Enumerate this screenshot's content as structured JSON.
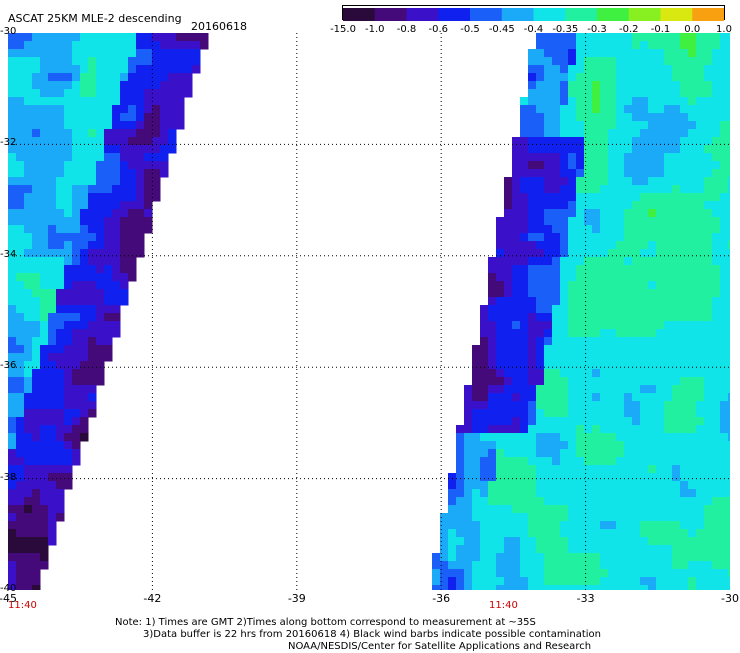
{
  "header": {
    "title": "ASCAT 25KM MLE-2 descending",
    "date": "20160618"
  },
  "colorbar": {
    "labels": [
      "-15.0",
      "-1.0",
      "-0.8",
      "-0.6",
      "-0.5",
      "-0.45",
      "-0.4",
      "-0.35",
      "-0.3",
      "-0.2",
      "-0.1",
      "0.0",
      "1.0"
    ],
    "colors": [
      "#2a0a3a",
      "#440a7a",
      "#3a10c8",
      "#1020ee",
      "#1a60f8",
      "#1aaaf8",
      "#10e4e8",
      "#20f0a0",
      "#40f040",
      "#88f020",
      "#d8e810",
      "#f8a010",
      "#f83010"
    ]
  },
  "axes": {
    "x_ticks": [
      "-45",
      "-42",
      "-39",
      "-36",
      "-33",
      "-30"
    ],
    "y_ticks": [
      "-30",
      "-32",
      "-34",
      "-36",
      "-38",
      "-40"
    ],
    "lon_range": [
      -45,
      -30
    ],
    "lat_range": [
      -40,
      -30
    ]
  },
  "time_labels": [
    "11:40",
    "11:40"
  ],
  "notes": [
    "Note: 1) Times are GMT 2)Times along bottom correspond to measurement at ~35S",
    "3)Data buffer is 22 hrs from 20160618 4) Black wind barbs indicate possible contamination",
    "NOAA/NESDIS/Center for Satellite Applications and Research"
  ]
}
